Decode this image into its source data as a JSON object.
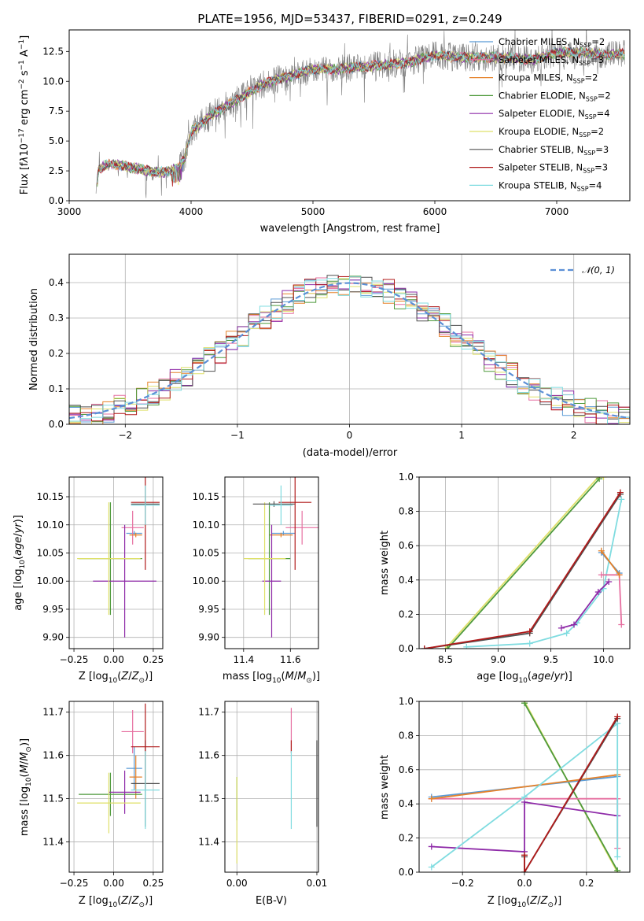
{
  "colors": {
    "chabrier_miles": "#5b9bd5",
    "salpeter_miles": "#e66fa0",
    "kroupa_miles": "#e6822a",
    "chabrier_elodie": "#4f9a3c",
    "salpeter_elodie": "#8e2aa8",
    "kroupa_elodie": "#dfe06a",
    "chabrier_stelib": "#505050",
    "salpeter_stelib": "#b01a1a",
    "kroupa_stelib": "#80dce0",
    "gaussian": "#5b8fd6",
    "data": "#808080"
  },
  "chart_data": [
    {
      "id": "spectrum",
      "type": "line",
      "title": "PLATE=1956, MJD=53437, FIBERID=0291, z=0.249",
      "xlabel": "wavelength [Angstrom, rest frame]",
      "ylabel": "Flux [f_λ 10^-17 erg cm^-2 s^-1 A^-1]",
      "xlim": [
        3000,
        7600
      ],
      "ylim": [
        0,
        14.3
      ],
      "xticks": [
        "3000",
        "4000",
        "5000",
        "6000",
        "7000"
      ],
      "yticks": [
        "0.0",
        "2.5",
        "5.0",
        "7.5",
        "10.0",
        "12.5"
      ],
      "legend_position": "right",
      "continuum_shape": {
        "x": [
          3220,
          3240,
          3300,
          3400,
          3500,
          3600,
          3700,
          3800,
          3900,
          3950,
          4000,
          4100,
          4200,
          4300,
          4400,
          4600,
          4800,
          5000,
          5200,
          5400,
          5600,
          5800,
          6000,
          6200,
          6400,
          6600,
          6800,
          7000,
          7200,
          7400,
          7560
        ],
        "y": [
          0.5,
          2.6,
          3.0,
          3.0,
          2.8,
          2.6,
          2.4,
          2.4,
          2.8,
          3.6,
          5.8,
          6.6,
          7.4,
          8.0,
          8.6,
          9.8,
          10.4,
          11.0,
          11.0,
          11.2,
          11.4,
          11.6,
          12.2,
          12.0,
          12.0,
          12.0,
          11.8,
          12.4,
          12.4,
          12.2,
          12.3
        ]
      },
      "series": [
        {
          "name": "Chabrier MILES, N_SSP=2",
          "ckey": "chabrier_miles"
        },
        {
          "name": "Salpeter MILES, N_SSP=3",
          "ckey": "salpeter_miles"
        },
        {
          "name": "Kroupa MILES, N_SSP=2",
          "ckey": "kroupa_miles"
        },
        {
          "name": "Chabrier ELODIE, N_SSP=2",
          "ckey": "chabrier_elodie"
        },
        {
          "name": "Salpeter ELODIE, N_SSP=4",
          "ckey": "salpeter_elodie"
        },
        {
          "name": "Kroupa ELODIE, N_SSP=2",
          "ckey": "kroupa_elodie"
        },
        {
          "name": "Chabrier STELIB, N_SSP=3",
          "ckey": "chabrier_stelib"
        },
        {
          "name": "Salpeter STELIB, N_SSP=3",
          "ckey": "salpeter_stelib"
        },
        {
          "name": "Kroupa STELIB, N_SSP=4",
          "ckey": "kroupa_stelib"
        }
      ]
    },
    {
      "id": "residuals",
      "type": "histogram",
      "xlabel": "(data-model)/error",
      "ylabel": "Normed distribution",
      "xlim": [
        -2.5,
        2.5
      ],
      "ylim": [
        0,
        0.48
      ],
      "xticks": [
        "−2",
        "−1",
        "0",
        "1",
        "2"
      ],
      "yticks": [
        "0.0",
        "0.1",
        "0.2",
        "0.3",
        "0.4"
      ],
      "grid": true,
      "legend": "𝒩(0, 1)",
      "legend_position": "top-right",
      "bin_width": 0.1,
      "bin_start": -2.5
    },
    {
      "id": "age-vs-Z",
      "type": "scatter",
      "xlabel": "Z [log10(Z/Z⊙)]",
      "ylabel": "age [log10(age/yr)]",
      "xlim": [
        -0.28,
        0.31
      ],
      "ylim": [
        9.88,
        10.185
      ],
      "xticks": [
        "−0.25",
        "0.00",
        "0.25"
      ],
      "yticks": [
        "9.90",
        "9.95",
        "10.00",
        "10.05",
        "10.10",
        "10.15"
      ],
      "grid": true,
      "points": [
        {
          "ckey": "chabrier_miles",
          "x": 0.13,
          "y": 10.085,
          "ex": 0.05,
          "ey": 0.004
        },
        {
          "ckey": "salpeter_miles",
          "x": 0.12,
          "y": 10.095,
          "ex": 0.07,
          "ey": 0.03
        },
        {
          "ckey": "kroupa_miles",
          "x": 0.14,
          "y": 10.082,
          "ex": 0.04,
          "ey": 0.004
        },
        {
          "ckey": "chabrier_elodie",
          "x": -0.02,
          "y": 10.04,
          "ex": 0.2,
          "ey": 0.1
        },
        {
          "ckey": "salpeter_elodie",
          "x": 0.07,
          "y": 10.0,
          "ex": 0.2,
          "ey": 0.1
        },
        {
          "ckey": "kroupa_elodie",
          "x": -0.03,
          "y": 10.04,
          "ex": 0.2,
          "ey": 0.1
        },
        {
          "ckey": "chabrier_stelib",
          "x": 0.2,
          "y": 10.137,
          "ex": 0.09,
          "ey": 0.005
        },
        {
          "ckey": "salpeter_stelib",
          "x": 0.2,
          "y": 10.14,
          "ex": 0.09,
          "ey": 0.12
        },
        {
          "ckey": "kroupa_stelib",
          "x": 0.2,
          "y": 10.135,
          "ex": 0.09,
          "ey": 0.035
        }
      ]
    },
    {
      "id": "age-vs-mass",
      "type": "scatter",
      "xlabel": "mass [log10(M/M⊙)]",
      "xlim": [
        11.32,
        11.72
      ],
      "ylim": [
        9.88,
        10.185
      ],
      "xticks": [
        "11.4",
        "11.6"
      ],
      "yticks": [
        "9.90",
        "9.95",
        "10.00",
        "10.05",
        "10.10",
        "10.15"
      ],
      "grid": true,
      "points": [
        {
          "ckey": "chabrier_miles",
          "x": 11.57,
          "y": 10.085,
          "ex": 0.05,
          "ey": 0.004
        },
        {
          "ckey": "salpeter_miles",
          "x": 11.65,
          "y": 10.095,
          "ex": 0.07,
          "ey": 0.03
        },
        {
          "ckey": "kroupa_miles",
          "x": 11.56,
          "y": 10.082,
          "ex": 0.05,
          "ey": 0.004
        },
        {
          "ckey": "chabrier_elodie",
          "x": 11.51,
          "y": 10.04,
          "ex": 0.09,
          "ey": 0.1
        },
        {
          "ckey": "salpeter_elodie",
          "x": 11.52,
          "y": 10.0,
          "ex": 0.04,
          "ey": 0.1
        },
        {
          "ckey": "kroupa_elodie",
          "x": 11.49,
          "y": 10.04,
          "ex": 0.09,
          "ey": 0.1
        },
        {
          "ckey": "chabrier_stelib",
          "x": 11.53,
          "y": 10.137,
          "ex": 0.09,
          "ey": 0.005
        },
        {
          "ckey": "salpeter_stelib",
          "x": 11.62,
          "y": 10.14,
          "ex": 0.07,
          "ey": 0.12
        },
        {
          "ckey": "kroupa_stelib",
          "x": 11.56,
          "y": 10.135,
          "ex": 0.05,
          "ey": 0.035
        }
      ]
    },
    {
      "id": "massweight-vs-age",
      "type": "line",
      "xlabel": "age [log10(age/yr)]",
      "ylabel": "mass weight",
      "xlim": [
        8.25,
        10.25
      ],
      "ylim": [
        0,
        1.0
      ],
      "xticks": [
        "8.5",
        "9.0",
        "9.5",
        "10.0"
      ],
      "yticks": [
        "0.0",
        "0.2",
        "0.4",
        "0.6",
        "0.8",
        "1.0"
      ],
      "grid": true,
      "series": [
        {
          "ckey": "kroupa_elodie",
          "x": [
            8.5,
            9.95,
            10.0
          ],
          "y": [
            0.0,
            1.0,
            1.0
          ]
        },
        {
          "ckey": "chabrier_elodie",
          "x": [
            8.52,
            9.96
          ],
          "y": [
            0.0,
            0.99
          ]
        },
        {
          "ckey": "kroupa_stelib",
          "x": [
            8.7,
            9.3,
            9.65,
            9.75,
            10.0,
            10.17
          ],
          "y": [
            0.01,
            0.03,
            0.09,
            0.15,
            0.35,
            0.87
          ]
        },
        {
          "ckey": "salpeter_elodie",
          "x": [
            9.6,
            9.72,
            9.95,
            10.05
          ],
          "y": [
            0.12,
            0.14,
            0.33,
            0.39
          ]
        },
        {
          "ckey": "salpeter_miles",
          "x": [
            9.98,
            10.15,
            10.17
          ],
          "y": [
            0.43,
            0.43,
            0.14
          ]
        },
        {
          "ckey": "chabrier_miles",
          "x": [
            9.98,
            10.15
          ],
          "y": [
            0.56,
            0.44
          ]
        },
        {
          "ckey": "kroupa_miles",
          "x": [
            9.98,
            10.15
          ],
          "y": [
            0.57,
            0.43
          ]
        },
        {
          "ckey": "chabrier_stelib",
          "x": [
            8.3,
            9.3,
            10.16
          ],
          "y": [
            0.0,
            0.09,
            0.9
          ]
        },
        {
          "ckey": "salpeter_stelib",
          "x": [
            8.3,
            9.3,
            10.16
          ],
          "y": [
            0.0,
            0.1,
            0.91
          ]
        }
      ]
    },
    {
      "id": "mass-vs-Z",
      "type": "scatter",
      "xlabel": "Z [log10(Z/Z⊙)]",
      "ylabel": "mass [log10(M/M⊙)]",
      "xlim": [
        -0.28,
        0.31
      ],
      "ylim": [
        11.33,
        11.725
      ],
      "xticks": [
        "−0.25",
        "0.00",
        "0.25"
      ],
      "yticks": [
        "11.4",
        "11.5",
        "11.6",
        "11.7"
      ],
      "grid": true,
      "points": [
        {
          "ckey": "chabrier_miles",
          "x": 0.13,
          "y": 11.57,
          "ex": 0.05,
          "ey": 0.05
        },
        {
          "ckey": "salpeter_miles",
          "x": 0.12,
          "y": 11.655,
          "ex": 0.07,
          "ey": 0.05
        },
        {
          "ckey": "kroupa_miles",
          "x": 0.14,
          "y": 11.55,
          "ex": 0.04,
          "ey": 0.05
        },
        {
          "ckey": "chabrier_elodie",
          "x": -0.02,
          "y": 11.51,
          "ex": 0.2,
          "ey": 0.05
        },
        {
          "ckey": "salpeter_elodie",
          "x": 0.07,
          "y": 11.515,
          "ex": 0.1,
          "ey": 0.05
        },
        {
          "ckey": "kroupa_elodie",
          "x": -0.03,
          "y": 11.49,
          "ex": 0.2,
          "ey": 0.07
        },
        {
          "ckey": "chabrier_stelib",
          "x": 0.2,
          "y": 11.535,
          "ex": 0.09,
          "ey": 0.1
        },
        {
          "ckey": "salpeter_stelib",
          "x": 0.2,
          "y": 11.62,
          "ex": 0.09,
          "ey": 0.1
        },
        {
          "ckey": "kroupa_stelib",
          "x": 0.2,
          "y": 11.52,
          "ex": 0.09,
          "ey": 0.09
        }
      ]
    },
    {
      "id": "mass-vs-ebv",
      "type": "scatter",
      "xlabel": "E(B-V)",
      "xlim": [
        -0.0015,
        0.0102
      ],
      "ylim": [
        11.33,
        11.725
      ],
      "xticks": [
        "0.00",
        "0.01"
      ],
      "yticks": [
        "11.4",
        "11.5",
        "11.6",
        "11.7"
      ],
      "grid": true,
      "points": [
        {
          "ckey": "chabrier_elodie",
          "x": 0.0,
          "y": 11.5,
          "ey": 0.05
        },
        {
          "ckey": "kroupa_elodie",
          "x": 0.0,
          "y": 11.45,
          "ey": 0.1
        },
        {
          "ckey": "salpeter_miles",
          "x": 0.0068,
          "y": 11.66,
          "ey": 0.05
        },
        {
          "ckey": "salpeter_stelib",
          "x": 0.0068,
          "y": 11.62,
          "ey": 0.015
        },
        {
          "ckey": "kroupa_stelib",
          "x": 0.0068,
          "y": 11.52,
          "ey": 0.09
        },
        {
          "ckey": "chabrier_stelib",
          "x": 0.01,
          "y": 11.535,
          "ey": 0.1
        }
      ]
    },
    {
      "id": "massweight-vs-Z",
      "type": "line",
      "xlabel": "Z [log10(Z/Z⊙)]",
      "ylabel": "mass weight",
      "xlim": [
        -0.34,
        0.34
      ],
      "ylim": [
        0,
        1.0
      ],
      "xticks": [
        "−0.2",
        "0.0",
        "0.2"
      ],
      "yticks": [
        "0.0",
        "0.2",
        "0.4",
        "0.6",
        "0.8",
        "1.0"
      ],
      "grid": true,
      "series": [
        {
          "ckey": "kroupa_elodie",
          "x": [
            0.0,
            0.3
          ],
          "y": [
            1.0,
            0.0
          ]
        },
        {
          "ckey": "chabrier_elodie",
          "x": [
            0.0,
            0.3
          ],
          "y": [
            0.99,
            0.01
          ]
        },
        {
          "ckey": "salpeter_miles",
          "x": [
            -0.3,
            0.3,
            0.3
          ],
          "y": [
            0.43,
            0.43,
            0.14
          ]
        },
        {
          "ckey": "chabrier_miles",
          "x": [
            -0.3,
            0.3
          ],
          "y": [
            0.44,
            0.56
          ]
        },
        {
          "ckey": "kroupa_miles",
          "x": [
            -0.3,
            0.3
          ],
          "y": [
            0.43,
            0.57
          ]
        },
        {
          "ckey": "salpeter_elodie",
          "x": [
            -0.3,
            0.0,
            0.0,
            0.3
          ],
          "y": [
            0.15,
            0.12,
            0.41,
            0.33
          ]
        },
        {
          "ckey": "kroupa_stelib",
          "x": [
            -0.3,
            0.0,
            0.3,
            0.3
          ],
          "y": [
            0.03,
            0.44,
            0.87,
            0.09
          ]
        },
        {
          "ckey": "chabrier_stelib",
          "x": [
            0.0,
            0.0,
            0.3
          ],
          "y": [
            0.09,
            0.0,
            0.9
          ]
        },
        {
          "ckey": "salpeter_stelib",
          "x": [
            0.0,
            0.0,
            0.3
          ],
          "y": [
            0.1,
            0.0,
            0.91
          ]
        }
      ]
    }
  ]
}
